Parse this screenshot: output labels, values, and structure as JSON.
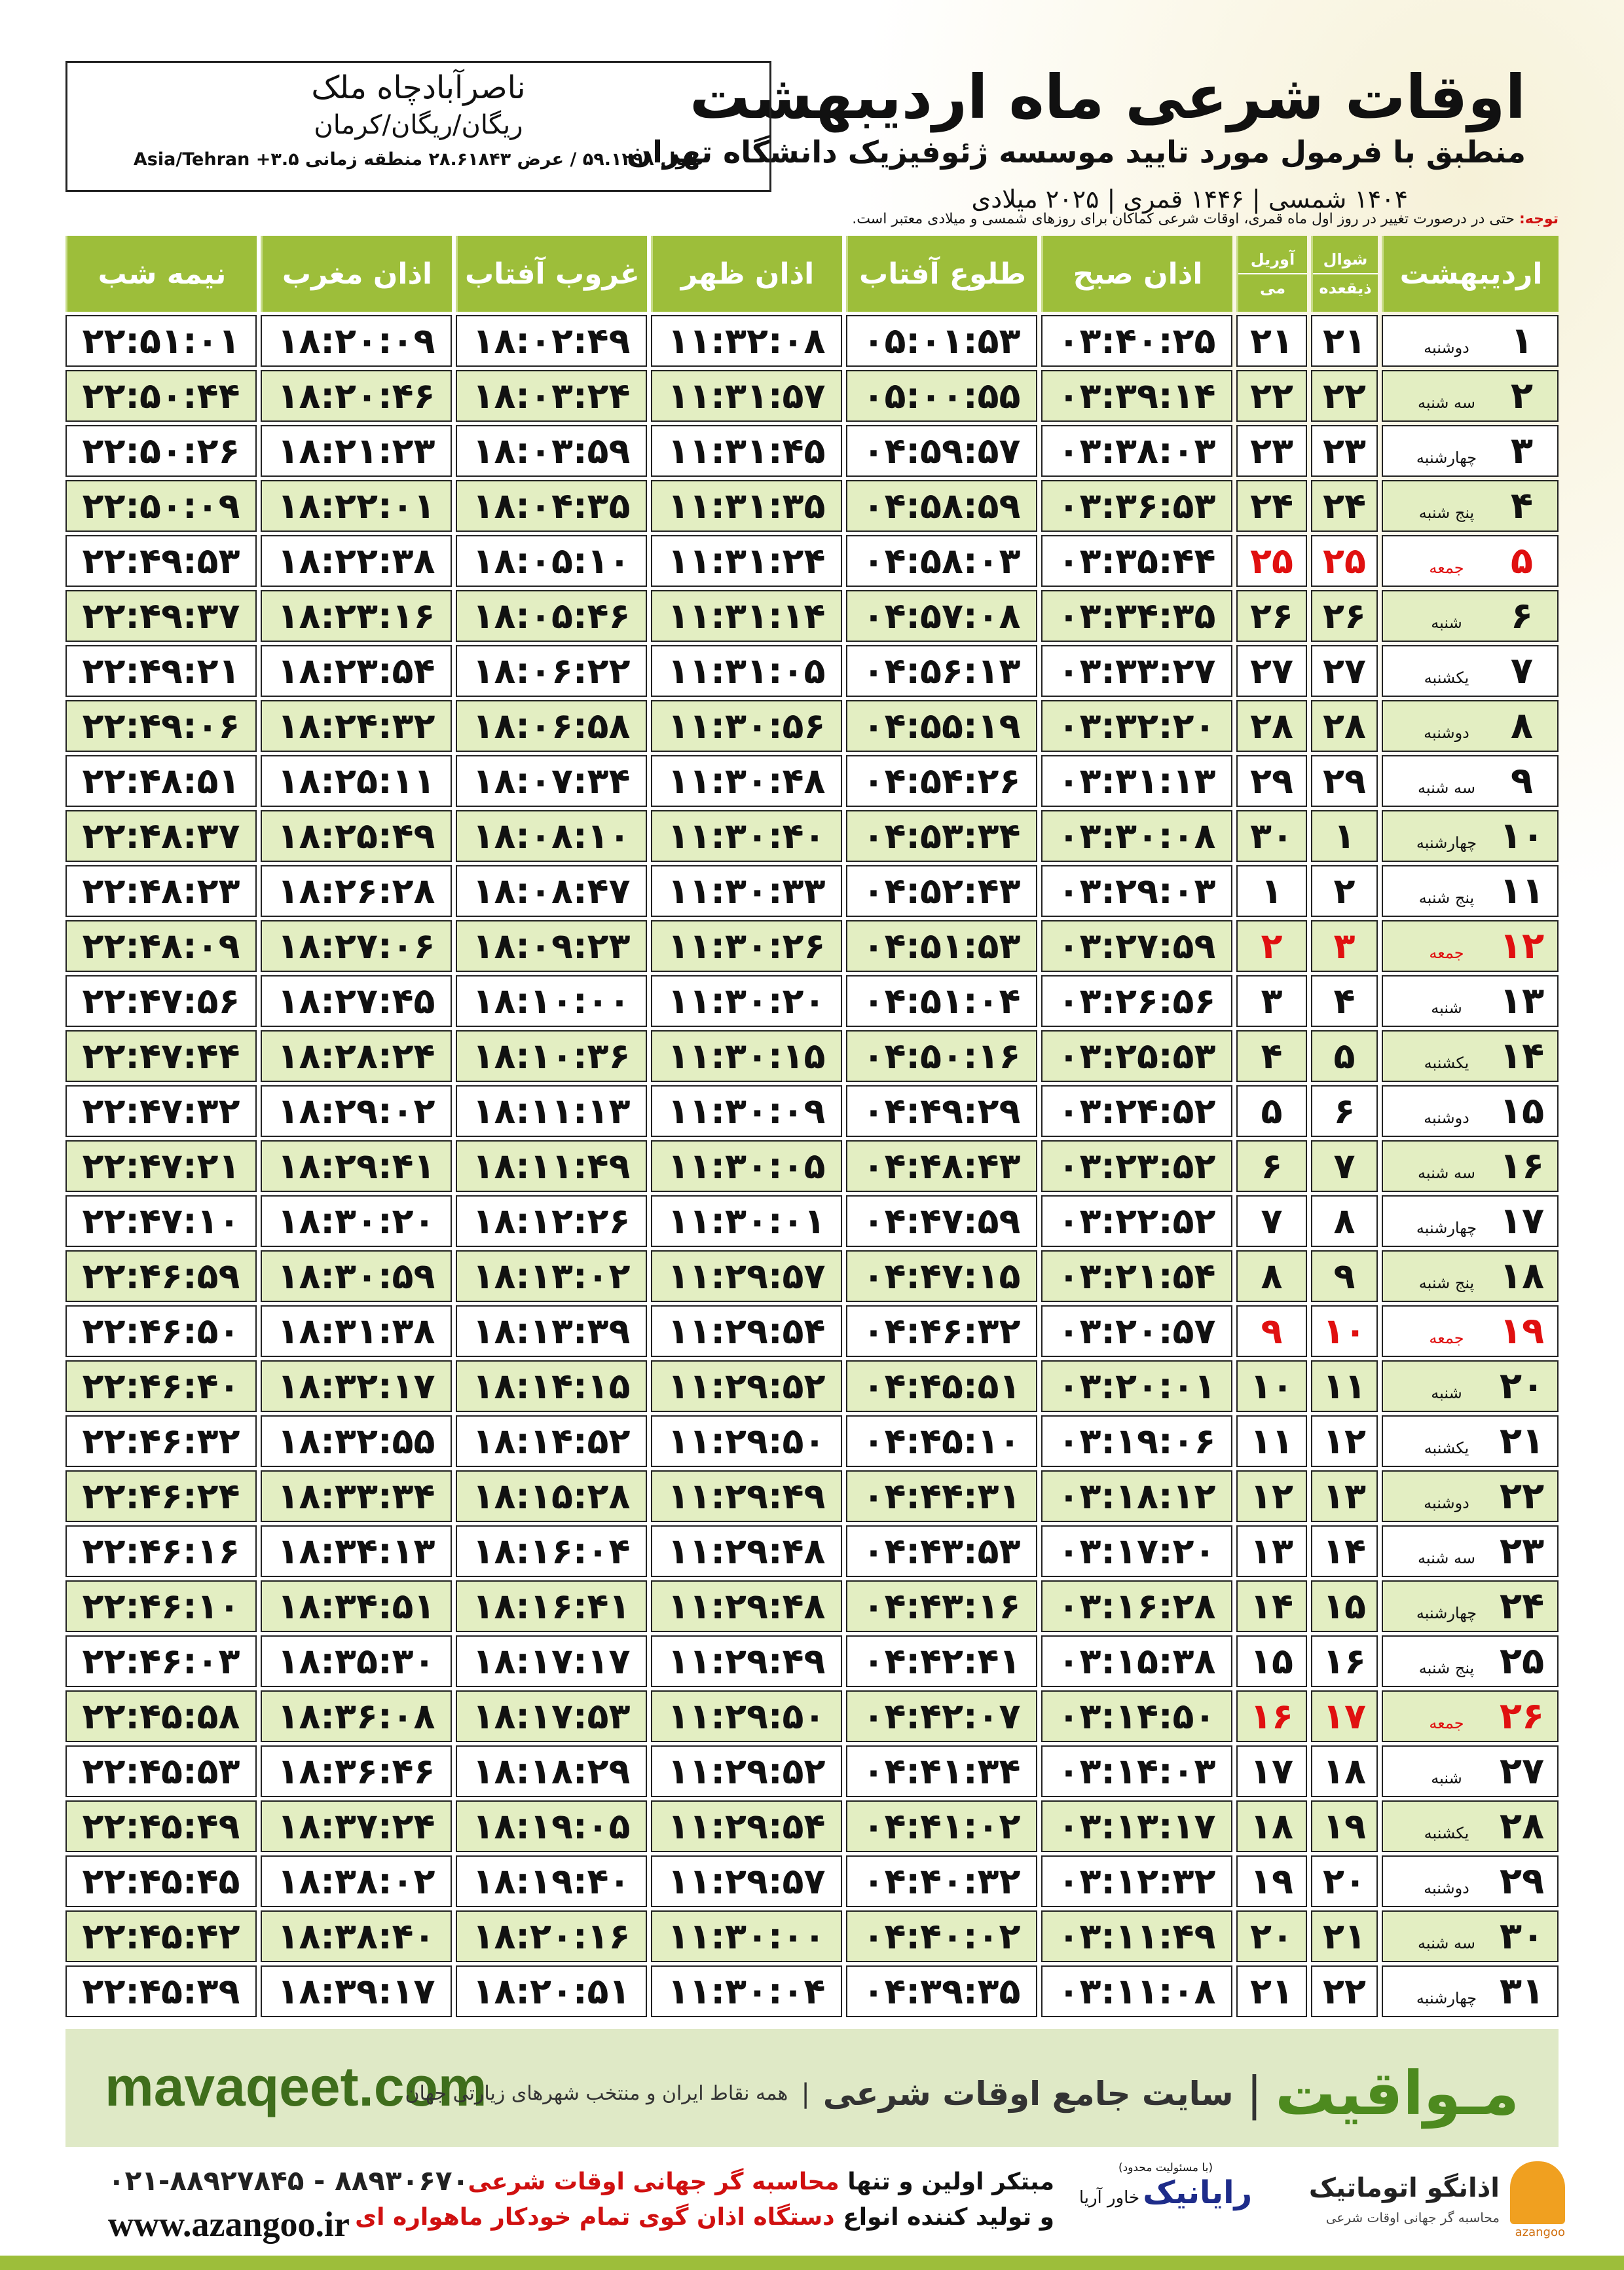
{
  "header": {
    "title": "اوقات شرعی ماه اردیبهشت",
    "subtitle": "منطبق با فرمول مورد تایید موسسه ژئوفیزیک دانشگاه تهران",
    "dates": "۱۴۰۴ شمسی | ۱۴۴۶ قمری | ۲۰۲۵ میلادی"
  },
  "location": {
    "name": "ناصرآبادچاه ملک",
    "region": "ریگان/ریگان/کرمان",
    "coords": "طول ۵۹.۱۲۹۸ / عرض ۲۸.۶۱۸۴۳ منطقه زمانی ۳.۵+ Asia/Tehran"
  },
  "note": {
    "label": "توجه:",
    "text": "حتی در درصورت تغییر در روز اول ماه قمری، اوقات شرعی کماکان برای روزهای شمسی و میلادی معتبر است."
  },
  "table": {
    "headers": {
      "month": "اردیبهشت",
      "hijri": [
        "شوال",
        "ذیقعده"
      ],
      "gregorian": [
        "آوریل",
        "می"
      ],
      "times": [
        "اذان صبح",
        "طلوع آفتاب",
        "اذان ظهر",
        "غروب آفتاب",
        "اذان مغرب",
        "نیمه شب"
      ]
    },
    "rows": [
      [
        "۱",
        "دوشنبه",
        "۲۱",
        "۲۱",
        "۰۳:۴۰:۲۵",
        "۰۵:۰۱:۵۳",
        "۱۱:۳۲:۰۸",
        "۱۸:۰۲:۴۹",
        "۱۸:۲۰:۰۹",
        "۲۲:۵۱:۰۱"
      ],
      [
        "۲",
        "سه شنبه",
        "۲۲",
        "۲۲",
        "۰۳:۳۹:۱۴",
        "۰۵:۰۰:۵۵",
        "۱۱:۳۱:۵۷",
        "۱۸:۰۳:۲۴",
        "۱۸:۲۰:۴۶",
        "۲۲:۵۰:۴۴"
      ],
      [
        "۳",
        "چهارشنبه",
        "۲۳",
        "۲۳",
        "۰۳:۳۸:۰۳",
        "۰۴:۵۹:۵۷",
        "۱۱:۳۱:۴۵",
        "۱۸:۰۳:۵۹",
        "۱۸:۲۱:۲۳",
        "۲۲:۵۰:۲۶"
      ],
      [
        "۴",
        "پنج شنبه",
        "۲۴",
        "۲۴",
        "۰۳:۳۶:۵۳",
        "۰۴:۵۸:۵۹",
        "۱۱:۳۱:۳۵",
        "۱۸:۰۴:۳۵",
        "۱۸:۲۲:۰۱",
        "۲۲:۵۰:۰۹"
      ],
      [
        "۵",
        "جمعه",
        "۲۵",
        "۲۵",
        "۰۳:۳۵:۴۴",
        "۰۴:۵۸:۰۳",
        "۱۱:۳۱:۲۴",
        "۱۸:۰۵:۱۰",
        "۱۸:۲۲:۳۸",
        "۲۲:۴۹:۵۳"
      ],
      [
        "۶",
        "شنبه",
        "۲۶",
        "۲۶",
        "۰۳:۳۴:۳۵",
        "۰۴:۵۷:۰۸",
        "۱۱:۳۱:۱۴",
        "۱۸:۰۵:۴۶",
        "۱۸:۲۳:۱۶",
        "۲۲:۴۹:۳۷"
      ],
      [
        "۷",
        "یکشنبه",
        "۲۷",
        "۲۷",
        "۰۳:۳۳:۲۷",
        "۰۴:۵۶:۱۳",
        "۱۱:۳۱:۰۵",
        "۱۸:۰۶:۲۲",
        "۱۸:۲۳:۵۴",
        "۲۲:۴۹:۲۱"
      ],
      [
        "۸",
        "دوشنبه",
        "۲۸",
        "۲۸",
        "۰۳:۳۲:۲۰",
        "۰۴:۵۵:۱۹",
        "۱۱:۳۰:۵۶",
        "۱۸:۰۶:۵۸",
        "۱۸:۲۴:۳۲",
        "۲۲:۴۹:۰۶"
      ],
      [
        "۹",
        "سه شنبه",
        "۲۹",
        "۲۹",
        "۰۳:۳۱:۱۳",
        "۰۴:۵۴:۲۶",
        "۱۱:۳۰:۴۸",
        "۱۸:۰۷:۳۴",
        "۱۸:۲۵:۱۱",
        "۲۲:۴۸:۵۱"
      ],
      [
        "۱۰",
        "چهارشنبه",
        "۱",
        "۳۰",
        "۰۳:۳۰:۰۸",
        "۰۴:۵۳:۳۴",
        "۱۱:۳۰:۴۰",
        "۱۸:۰۸:۱۰",
        "۱۸:۲۵:۴۹",
        "۲۲:۴۸:۳۷"
      ],
      [
        "۱۱",
        "پنج شنبه",
        "۲",
        "۱",
        "۰۳:۲۹:۰۳",
        "۰۴:۵۲:۴۳",
        "۱۱:۳۰:۳۳",
        "۱۸:۰۸:۴۷",
        "۱۸:۲۶:۲۸",
        "۲۲:۴۸:۲۳"
      ],
      [
        "۱۲",
        "جمعه",
        "۳",
        "۲",
        "۰۳:۲۷:۵۹",
        "۰۴:۵۱:۵۳",
        "۱۱:۳۰:۲۶",
        "۱۸:۰۹:۲۳",
        "۱۸:۲۷:۰۶",
        "۲۲:۴۸:۰۹"
      ],
      [
        "۱۳",
        "شنبه",
        "۴",
        "۳",
        "۰۳:۲۶:۵۶",
        "۰۴:۵۱:۰۴",
        "۱۱:۳۰:۲۰",
        "۱۸:۱۰:۰۰",
        "۱۸:۲۷:۴۵",
        "۲۲:۴۷:۵۶"
      ],
      [
        "۱۴",
        "یکشنبه",
        "۵",
        "۴",
        "۰۳:۲۵:۵۳",
        "۰۴:۵۰:۱۶",
        "۱۱:۳۰:۱۵",
        "۱۸:۱۰:۳۶",
        "۱۸:۲۸:۲۴",
        "۲۲:۴۷:۴۴"
      ],
      [
        "۱۵",
        "دوشنبه",
        "۶",
        "۵",
        "۰۳:۲۴:۵۲",
        "۰۴:۴۹:۲۹",
        "۱۱:۳۰:۰۹",
        "۱۸:۱۱:۱۳",
        "۱۸:۲۹:۰۲",
        "۲۲:۴۷:۳۲"
      ],
      [
        "۱۶",
        "سه شنبه",
        "۷",
        "۶",
        "۰۳:۲۳:۵۲",
        "۰۴:۴۸:۴۳",
        "۱۱:۳۰:۰۵",
        "۱۸:۱۱:۴۹",
        "۱۸:۲۹:۴۱",
        "۲۲:۴۷:۲۱"
      ],
      [
        "۱۷",
        "چهارشنبه",
        "۸",
        "۷",
        "۰۳:۲۲:۵۲",
        "۰۴:۴۷:۵۹",
        "۱۱:۳۰:۰۱",
        "۱۸:۱۲:۲۶",
        "۱۸:۳۰:۲۰",
        "۲۲:۴۷:۱۰"
      ],
      [
        "۱۸",
        "پنج شنبه",
        "۹",
        "۸",
        "۰۳:۲۱:۵۴",
        "۰۴:۴۷:۱۵",
        "۱۱:۲۹:۵۷",
        "۱۸:۱۳:۰۲",
        "۱۸:۳۰:۵۹",
        "۲۲:۴۶:۵۹"
      ],
      [
        "۱۹",
        "جمعه",
        "۱۰",
        "۹",
        "۰۳:۲۰:۵۷",
        "۰۴:۴۶:۳۲",
        "۱۱:۲۹:۵۴",
        "۱۸:۱۳:۳۹",
        "۱۸:۳۱:۳۸",
        "۲۲:۴۶:۵۰"
      ],
      [
        "۲۰",
        "شنبه",
        "۱۱",
        "۱۰",
        "۰۳:۲۰:۰۱",
        "۰۴:۴۵:۵۱",
        "۱۱:۲۹:۵۲",
        "۱۸:۱۴:۱۵",
        "۱۸:۳۲:۱۷",
        "۲۲:۴۶:۴۰"
      ],
      [
        "۲۱",
        "یکشنبه",
        "۱۲",
        "۱۱",
        "۰۳:۱۹:۰۶",
        "۰۴:۴۵:۱۰",
        "۱۱:۲۹:۵۰",
        "۱۸:۱۴:۵۲",
        "۱۸:۳۲:۵۵",
        "۲۲:۴۶:۳۲"
      ],
      [
        "۲۲",
        "دوشنبه",
        "۱۳",
        "۱۲",
        "۰۳:۱۸:۱۲",
        "۰۴:۴۴:۳۱",
        "۱۱:۲۹:۴۹",
        "۱۸:۱۵:۲۸",
        "۱۸:۳۳:۳۴",
        "۲۲:۴۶:۲۴"
      ],
      [
        "۲۳",
        "سه شنبه",
        "۱۴",
        "۱۳",
        "۰۳:۱۷:۲۰",
        "۰۴:۴۳:۵۳",
        "۱۱:۲۹:۴۸",
        "۱۸:۱۶:۰۴",
        "۱۸:۳۴:۱۳",
        "۲۲:۴۶:۱۶"
      ],
      [
        "۲۴",
        "چهارشنبه",
        "۱۵",
        "۱۴",
        "۰۳:۱۶:۲۸",
        "۰۴:۴۳:۱۶",
        "۱۱:۲۹:۴۸",
        "۱۸:۱۶:۴۱",
        "۱۸:۳۴:۵۱",
        "۲۲:۴۶:۱۰"
      ],
      [
        "۲۵",
        "پنج شنبه",
        "۱۶",
        "۱۵",
        "۰۳:۱۵:۳۸",
        "۰۴:۴۲:۴۱",
        "۱۱:۲۹:۴۹",
        "۱۸:۱۷:۱۷",
        "۱۸:۳۵:۳۰",
        "۲۲:۴۶:۰۳"
      ],
      [
        "۲۶",
        "جمعه",
        "۱۷",
        "۱۶",
        "۰۳:۱۴:۵۰",
        "۰۴:۴۲:۰۷",
        "۱۱:۲۹:۵۰",
        "۱۸:۱۷:۵۳",
        "۱۸:۳۶:۰۸",
        "۲۲:۴۵:۵۸"
      ],
      [
        "۲۷",
        "شنبه",
        "۱۸",
        "۱۷",
        "۰۳:۱۴:۰۳",
        "۰۴:۴۱:۳۴",
        "۱۱:۲۹:۵۲",
        "۱۸:۱۸:۲۹",
        "۱۸:۳۶:۴۶",
        "۲۲:۴۵:۵۳"
      ],
      [
        "۲۸",
        "یکشنبه",
        "۱۹",
        "۱۸",
        "۰۳:۱۳:۱۷",
        "۰۴:۴۱:۰۲",
        "۱۱:۲۹:۵۴",
        "۱۸:۱۹:۰۵",
        "۱۸:۳۷:۲۴",
        "۲۲:۴۵:۴۹"
      ],
      [
        "۲۹",
        "دوشنبه",
        "۲۰",
        "۱۹",
        "۰۳:۱۲:۳۲",
        "۰۴:۴۰:۳۲",
        "۱۱:۲۹:۵۷",
        "۱۸:۱۹:۴۰",
        "۱۸:۳۸:۰۲",
        "۲۲:۴۵:۴۵"
      ],
      [
        "۳۰",
        "سه شنبه",
        "۲۱",
        "۲۰",
        "۰۳:۱۱:۴۹",
        "۰۴:۴۰:۰۲",
        "۱۱:۳۰:۰۰",
        "۱۸:۲۰:۱۶",
        "۱۸:۳۸:۴۰",
        "۲۲:۴۵:۴۲"
      ],
      [
        "۳۱",
        "چهارشنبه",
        "۲۲",
        "۲۱",
        "۰۳:۱۱:۰۸",
        "۰۴:۳۹:۳۵",
        "۱۱:۳۰:۰۴",
        "۱۸:۲۰:۵۱",
        "۱۸:۳۹:۱۷",
        "۲۲:۴۵:۳۹"
      ]
    ]
  },
  "footer": {
    "brand": "مـواقیت",
    "tagline": "سایت جامع اوقات شرعی",
    "scope": "همه نقاط ایران و منتخب شهرهای زیارتی جهان",
    "site": "mavaqeet.com"
  },
  "contact": {
    "phones": "۰۲۱-۸۸۹۲۷۸۴۵ - ۸۸۹۳۰۶۷۰",
    "web": "www.azangoo.ir",
    "line1": [
      "مبتکر اولین و تنها ",
      "محاسبه گر جهانی اوقات شرعی"
    ],
    "line2": [
      "و تولید کننده انواع ",
      "دستگاه اذان گوی تمام خودکار ماهواره ای"
    ],
    "partner": {
      "name": "رایانیک",
      "sub": "خاور آریا",
      "legal": "(با مسئولیت محدود)"
    },
    "logo": {
      "name": "اذانگو اتوماتیک",
      "sub": "محاسبه گر جهانی اوقات شرعی",
      "latin": "azangoo"
    }
  }
}
